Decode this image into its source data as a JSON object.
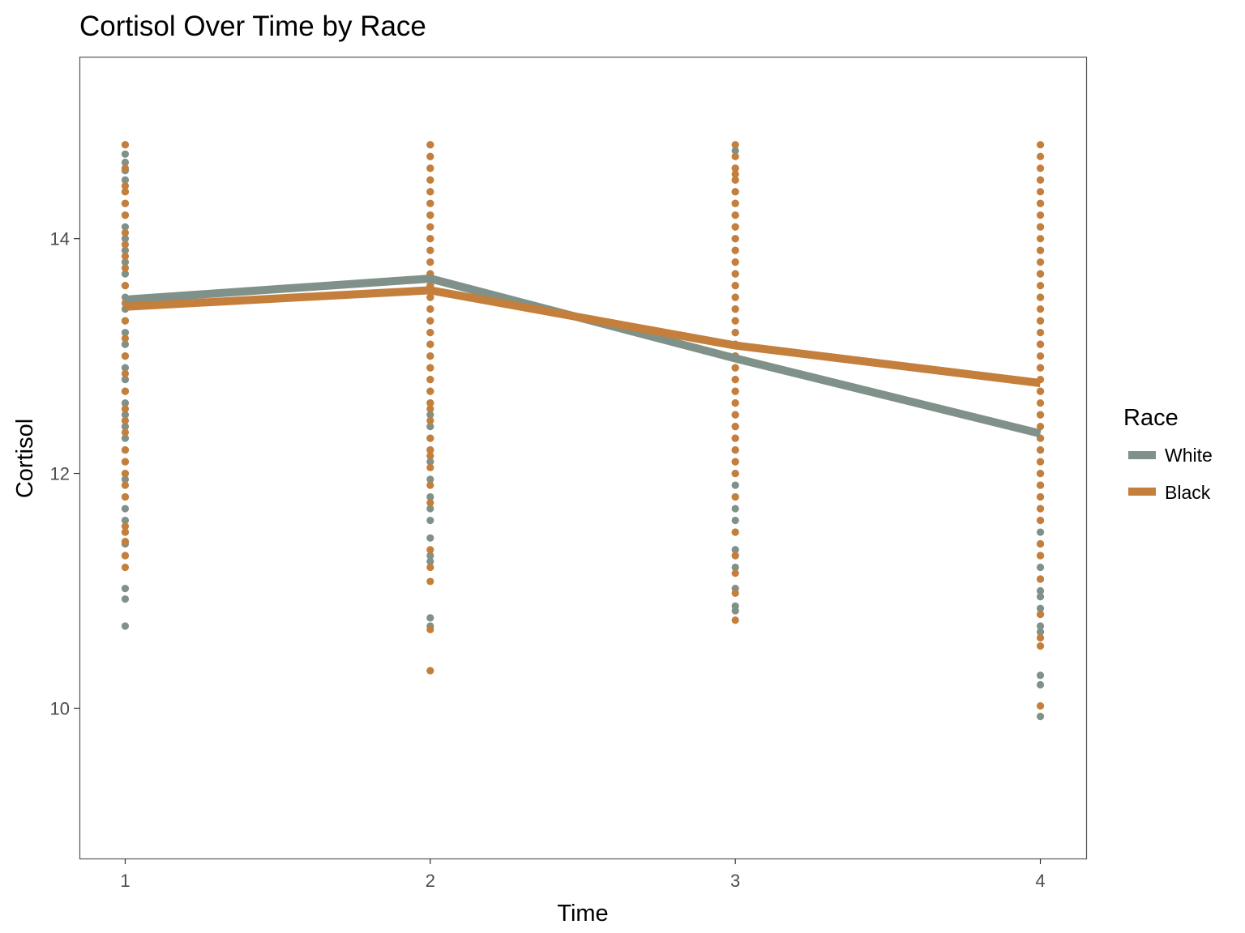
{
  "chart_data": {
    "type": "line",
    "title": "Cortisol Over Time by Race",
    "xlabel": "Time",
    "ylabel": "Cortisol",
    "x": [
      1,
      2,
      3,
      4
    ],
    "x_tick_labels": [
      "1",
      "2",
      "3",
      "4"
    ],
    "xlim": [
      0.85,
      4.15
    ],
    "y_ticks": [
      10,
      12,
      14
    ],
    "y_tick_labels": [
      "10",
      "12",
      "14"
    ],
    "ylim": [
      8.72,
      15.55
    ],
    "grid": false,
    "legend": {
      "title": "Race",
      "position": "right"
    },
    "series": [
      {
        "name": "White",
        "color": "#7f9188",
        "values": [
          13.48,
          13.66,
          12.98,
          12.34
        ],
        "points": [
          [
            14.8,
            14.72,
            14.65,
            14.58,
            14.5,
            14.4,
            14.3,
            14.2,
            14.1,
            14.0,
            13.9,
            13.8,
            13.7,
            13.6,
            13.5,
            13.4,
            13.3,
            13.2,
            13.1,
            13.0,
            12.9,
            12.8,
            12.7,
            12.6,
            12.5,
            12.4,
            12.3,
            12.2,
            12.1,
            12.0,
            11.95,
            11.8,
            11.7,
            11.6,
            11.5,
            11.4,
            11.3,
            11.02,
            10.93,
            10.7
          ],
          [
            14.8,
            14.7,
            14.6,
            14.5,
            14.4,
            14.3,
            14.2,
            14.1,
            14.0,
            13.9,
            13.8,
            13.7,
            13.6,
            13.5,
            13.4,
            13.3,
            13.2,
            13.1,
            13.0,
            12.9,
            12.8,
            12.7,
            12.6,
            12.5,
            12.4,
            12.3,
            12.2,
            12.1,
            11.95,
            11.8,
            11.7,
            11.6,
            11.45,
            11.3,
            11.25,
            10.77,
            10.7
          ],
          [
            14.75,
            14.6,
            14.5,
            14.4,
            14.3,
            14.2,
            14.1,
            14.0,
            13.9,
            13.8,
            13.7,
            13.6,
            13.5,
            13.4,
            13.3,
            13.2,
            13.1,
            13.0,
            12.9,
            12.8,
            12.7,
            12.6,
            12.5,
            12.4,
            12.3,
            12.2,
            12.1,
            12.0,
            11.9,
            11.8,
            11.7,
            11.6,
            11.5,
            11.35,
            11.3,
            11.2,
            11.02,
            10.87,
            10.83
          ],
          [
            14.5,
            14.3,
            14.1,
            13.9,
            13.7,
            13.5,
            13.3,
            13.1,
            12.9,
            12.7,
            12.5,
            12.3,
            12.2,
            12.1,
            12.0,
            11.9,
            11.8,
            11.7,
            11.6,
            11.5,
            11.4,
            11.3,
            11.2,
            11.1,
            11.0,
            10.95,
            10.85,
            10.8,
            10.7,
            10.65,
            10.28,
            10.2,
            9.93
          ]
        ]
      },
      {
        "name": "Black",
        "color": "#c47f3d",
        "values": [
          13.42,
          13.56,
          13.09,
          12.77
        ],
        "points": [
          [
            14.8,
            14.6,
            14.45,
            14.4,
            14.3,
            14.2,
            14.05,
            13.95,
            13.85,
            13.75,
            13.6,
            13.45,
            13.3,
            13.15,
            13.0,
            12.85,
            12.7,
            12.55,
            12.45,
            12.35,
            12.2,
            12.1,
            12.0,
            11.9,
            11.8,
            11.55,
            11.5,
            11.42,
            11.3,
            11.2
          ],
          [
            14.8,
            14.7,
            14.6,
            14.5,
            14.4,
            14.3,
            14.2,
            14.1,
            14.0,
            13.9,
            13.8,
            13.7,
            13.6,
            13.5,
            13.4,
            13.3,
            13.2,
            13.1,
            13.0,
            12.9,
            12.8,
            12.7,
            12.6,
            12.55,
            12.45,
            12.3,
            12.2,
            12.15,
            12.05,
            11.9,
            11.75,
            11.35,
            11.2,
            11.08,
            10.67,
            10.32
          ],
          [
            14.8,
            14.7,
            14.6,
            14.55,
            14.5,
            14.4,
            14.3,
            14.2,
            14.1,
            14.0,
            13.9,
            13.8,
            13.7,
            13.6,
            13.5,
            13.4,
            13.3,
            13.2,
            13.1,
            13.0,
            12.9,
            12.8,
            12.7,
            12.6,
            12.5,
            12.4,
            12.3,
            12.2,
            12.1,
            12.0,
            11.8,
            11.5,
            11.3,
            11.15,
            10.98,
            10.75
          ],
          [
            14.8,
            14.7,
            14.6,
            14.5,
            14.4,
            14.3,
            14.2,
            14.1,
            14.0,
            13.9,
            13.8,
            13.7,
            13.6,
            13.5,
            13.4,
            13.3,
            13.2,
            13.1,
            13.0,
            12.9,
            12.8,
            12.7,
            12.6,
            12.5,
            12.4,
            12.3,
            12.2,
            12.1,
            12.0,
            11.9,
            11.8,
            11.7,
            11.6,
            11.4,
            11.3,
            11.1,
            10.8,
            10.6,
            10.53,
            10.02
          ]
        ]
      }
    ]
  }
}
